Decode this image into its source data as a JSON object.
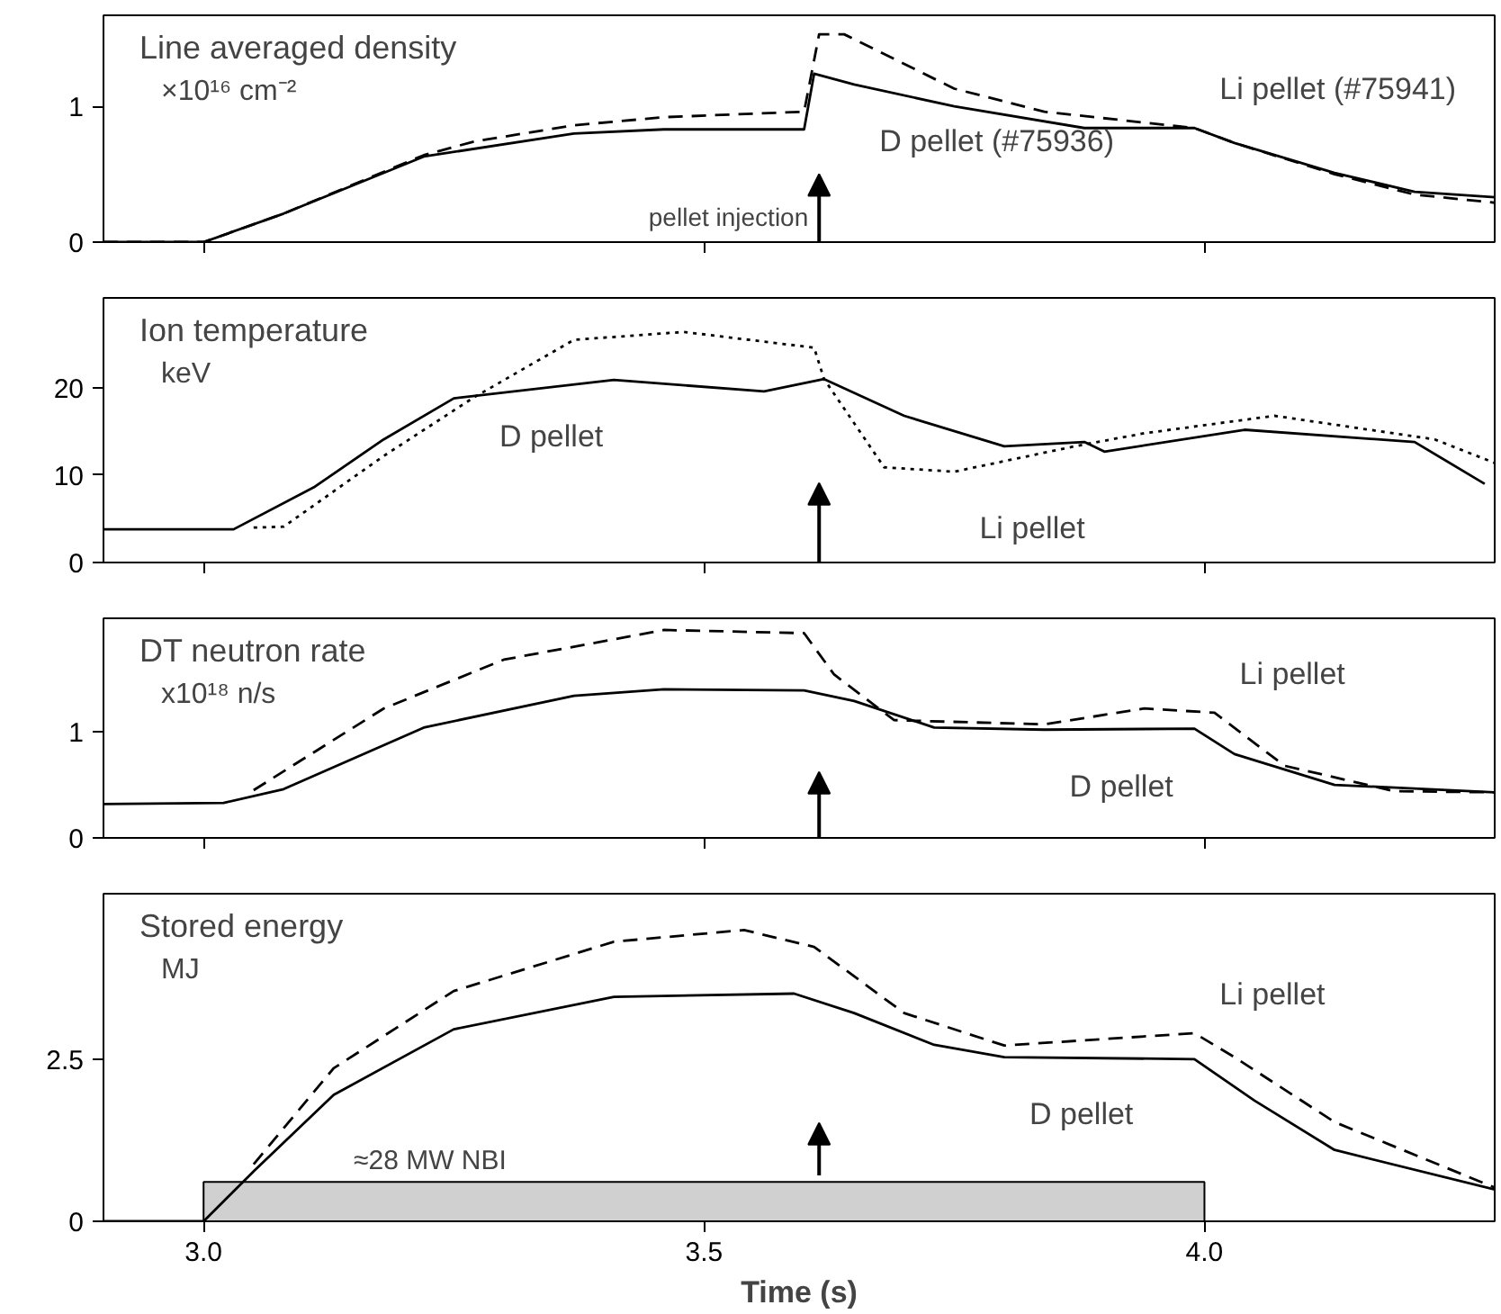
{
  "chart_data": [
    {
      "type": "line",
      "title": "Line averaged density",
      "subtitle": "×10¹⁶ cm⁻²",
      "xlim": [
        2.9,
        4.29
      ],
      "ylim": [
        0,
        1.67
      ],
      "xticks": [
        {
          "value": 3.0,
          "label": null
        },
        {
          "value": 3.5,
          "label": null
        },
        {
          "value": 4.0,
          "label": null
        }
      ],
      "yticks": [
        0,
        1
      ],
      "tick_labels": "y",
      "grid": false,
      "legend": false,
      "annotations": [
        "pellet injection"
      ],
      "series": [
        {
          "name": "Li pellet (#75941)",
          "color": "#000000",
          "line_style": "dashed",
          "x": [
            2.9,
            3.0,
            3.08,
            3.22,
            3.27,
            3.37,
            3.46,
            3.6,
            3.615,
            3.64,
            3.75,
            3.84,
            3.99,
            4.03,
            4.13,
            4.21,
            4.29
          ],
          "values": [
            0,
            0,
            0.21,
            0.64,
            0.74,
            0.86,
            0.92,
            0.96,
            1.53,
            1.53,
            1.13,
            0.96,
            0.84,
            0.73,
            0.5,
            0.35,
            0.29
          ]
        },
        {
          "name": "D pellet (#75936)",
          "color": "#000000",
          "line_style": "solid",
          "x": [
            2.9,
            3.0,
            3.08,
            3.22,
            3.37,
            3.46,
            3.6,
            3.61,
            3.65,
            3.75,
            3.88,
            3.99,
            4.03,
            4.13,
            4.21,
            4.29
          ],
          "values": [
            0,
            0,
            0.21,
            0.63,
            0.8,
            0.83,
            0.83,
            1.24,
            1.16,
            1.0,
            0.84,
            0.84,
            0.73,
            0.51,
            0.37,
            0.33
          ]
        }
      ]
    },
    {
      "type": "line",
      "title": "Ion temperature",
      "subtitle": "keV",
      "xlim": [
        2.9,
        4.29
      ],
      "ylim": [
        0,
        30.3
      ],
      "xticks": [
        {
          "value": 3.0,
          "label": null
        },
        {
          "value": 3.5,
          "label": null
        },
        {
          "value": 4.0,
          "label": null
        }
      ],
      "yticks": [
        0,
        10,
        20
      ],
      "tick_labels": "y",
      "grid": false,
      "legend": false,
      "series": [
        {
          "name": "Li pellet",
          "color": "#000000",
          "line_style": "dotted",
          "x": [
            3.05,
            3.08,
            3.18,
            3.27,
            3.37,
            3.48,
            3.61,
            3.62,
            3.68,
            3.75,
            3.87,
            3.94,
            4.07,
            4.23,
            4.29
          ],
          "values": [
            4.0,
            4.1,
            12.2,
            18.9,
            25.5,
            26.4,
            24.6,
            21.0,
            10.9,
            10.4,
            13.3,
            14.8,
            16.8,
            14.1,
            11.4
          ]
        },
        {
          "name": "D pellet",
          "color": "#000000",
          "line_style": "solid",
          "x": [
            2.9,
            3.03,
            3.11,
            3.18,
            3.25,
            3.41,
            3.56,
            3.62,
            3.7,
            3.8,
            3.88,
            3.9,
            4.04,
            4.21,
            4.28
          ],
          "values": [
            3.8,
            3.8,
            8.6,
            14.1,
            18.8,
            20.9,
            19.6,
            21.0,
            16.8,
            13.3,
            13.8,
            12.7,
            15.2,
            13.8,
            9.0
          ]
        }
      ]
    },
    {
      "type": "line",
      "title": "DT neutron rate",
      "subtitle": "x10¹⁸ n/s",
      "xlim": [
        2.9,
        4.29
      ],
      "ylim": [
        0,
        2.07
      ],
      "xticks": [
        {
          "value": 3.0,
          "label": null
        },
        {
          "value": 3.5,
          "label": null
        },
        {
          "value": 4.0,
          "label": null
        }
      ],
      "yticks": [
        0,
        1
      ],
      "tick_labels": "y",
      "grid": false,
      "legend": false,
      "series": [
        {
          "name": "Li pellet",
          "color": "#000000",
          "line_style": "dashed",
          "x": [
            3.05,
            3.18,
            3.3,
            3.46,
            3.6,
            3.63,
            3.69,
            3.84,
            3.94,
            4.01,
            4.08,
            4.19,
            4.29
          ],
          "values": [
            0.45,
            1.22,
            1.68,
            1.96,
            1.93,
            1.54,
            1.11,
            1.07,
            1.22,
            1.18,
            0.68,
            0.44,
            0.43
          ]
        },
        {
          "name": "D pellet",
          "color": "#000000",
          "line_style": "solid",
          "x": [
            2.9,
            3.02,
            3.08,
            3.22,
            3.37,
            3.46,
            3.6,
            3.65,
            3.73,
            3.84,
            3.99,
            4.03,
            4.13,
            4.29
          ],
          "values": [
            0.32,
            0.33,
            0.46,
            1.04,
            1.34,
            1.4,
            1.39,
            1.29,
            1.04,
            1.02,
            1.03,
            0.79,
            0.5,
            0.43
          ]
        }
      ]
    },
    {
      "type": "line",
      "title": "Stored energy",
      "subtitle": "MJ",
      "xlabel": "Time (s)",
      "xlim": [
        2.9,
        4.29
      ],
      "ylim": [
        0,
        5.05
      ],
      "xticks": [
        {
          "value": 3.0,
          "label": "3.0"
        },
        {
          "value": 3.5,
          "label": "3.5"
        },
        {
          "value": 4.0,
          "label": "4.0"
        }
      ],
      "yticks": [
        0,
        2.5
      ],
      "grid": false,
      "legend": false,
      "bands": [
        {
          "axis": "x",
          "from": 3.0,
          "to": 4.0,
          "label": "≈28 MW NBI",
          "color": "#d0d0d0"
        }
      ],
      "series": [
        {
          "name": "Li pellet",
          "color": "#000000",
          "line_style": "dashed",
          "x": [
            3.05,
            3.13,
            3.25,
            3.41,
            3.54,
            3.61,
            3.7,
            3.8,
            3.99,
            4.03,
            4.13,
            4.29
          ],
          "values": [
            0.88,
            2.36,
            3.55,
            4.31,
            4.49,
            4.23,
            3.21,
            2.71,
            2.9,
            2.53,
            1.53,
            0.52
          ]
        },
        {
          "name": "D pellet",
          "color": "#000000",
          "line_style": "solid",
          "x": [
            2.9,
            3.0,
            3.05,
            3.13,
            3.25,
            3.41,
            3.59,
            3.65,
            3.73,
            3.8,
            3.99,
            4.05,
            4.13,
            4.29
          ],
          "values": [
            0,
            0,
            0.77,
            1.95,
            2.96,
            3.46,
            3.51,
            3.21,
            2.72,
            2.53,
            2.5,
            1.86,
            1.1,
            0.49
          ]
        }
      ]
    }
  ]
}
